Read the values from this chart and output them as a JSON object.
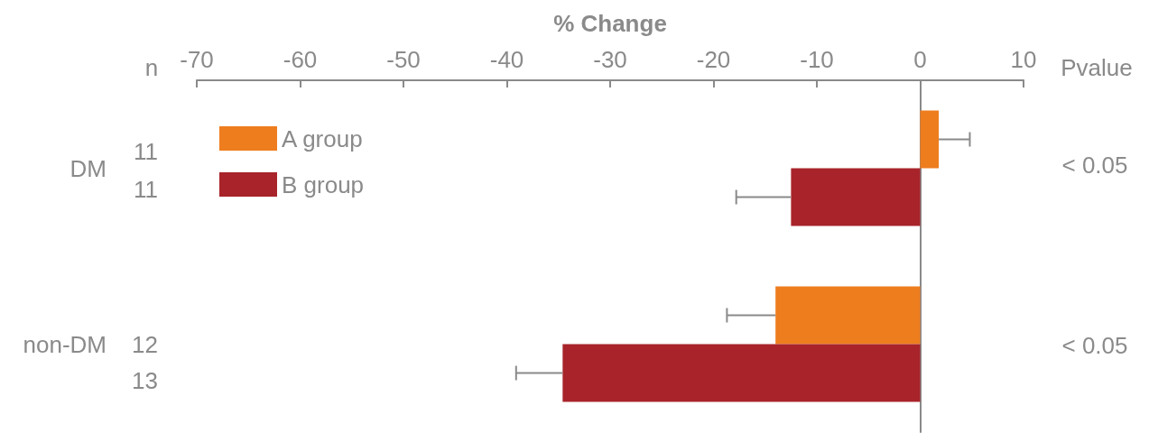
{
  "chart_data": {
    "type": "bar",
    "orientation": "horizontal",
    "xlabel": "% Change",
    "categories": [
      "DM",
      "non-DM"
    ],
    "series": [
      {
        "name": "A group",
        "color": "#ee7d1e",
        "values": [
          1.8,
          -14
        ],
        "errors": [
          3,
          4.7
        ]
      },
      {
        "name": "B group",
        "color": "#a8242a",
        "values": [
          -12.5,
          -34.6
        ],
        "errors": [
          5.3,
          4.5
        ]
      }
    ],
    "xlim": [
      -70,
      10
    ],
    "xticks": [
      -70,
      -60,
      -50,
      -40,
      -30,
      -20,
      -10,
      0,
      10
    ],
    "legend": "top left",
    "annotations": [
      "n",
      "11",
      "11",
      "12",
      "13",
      "Pvalue",
      "< 0.05",
      "< 0.05"
    ]
  }
}
